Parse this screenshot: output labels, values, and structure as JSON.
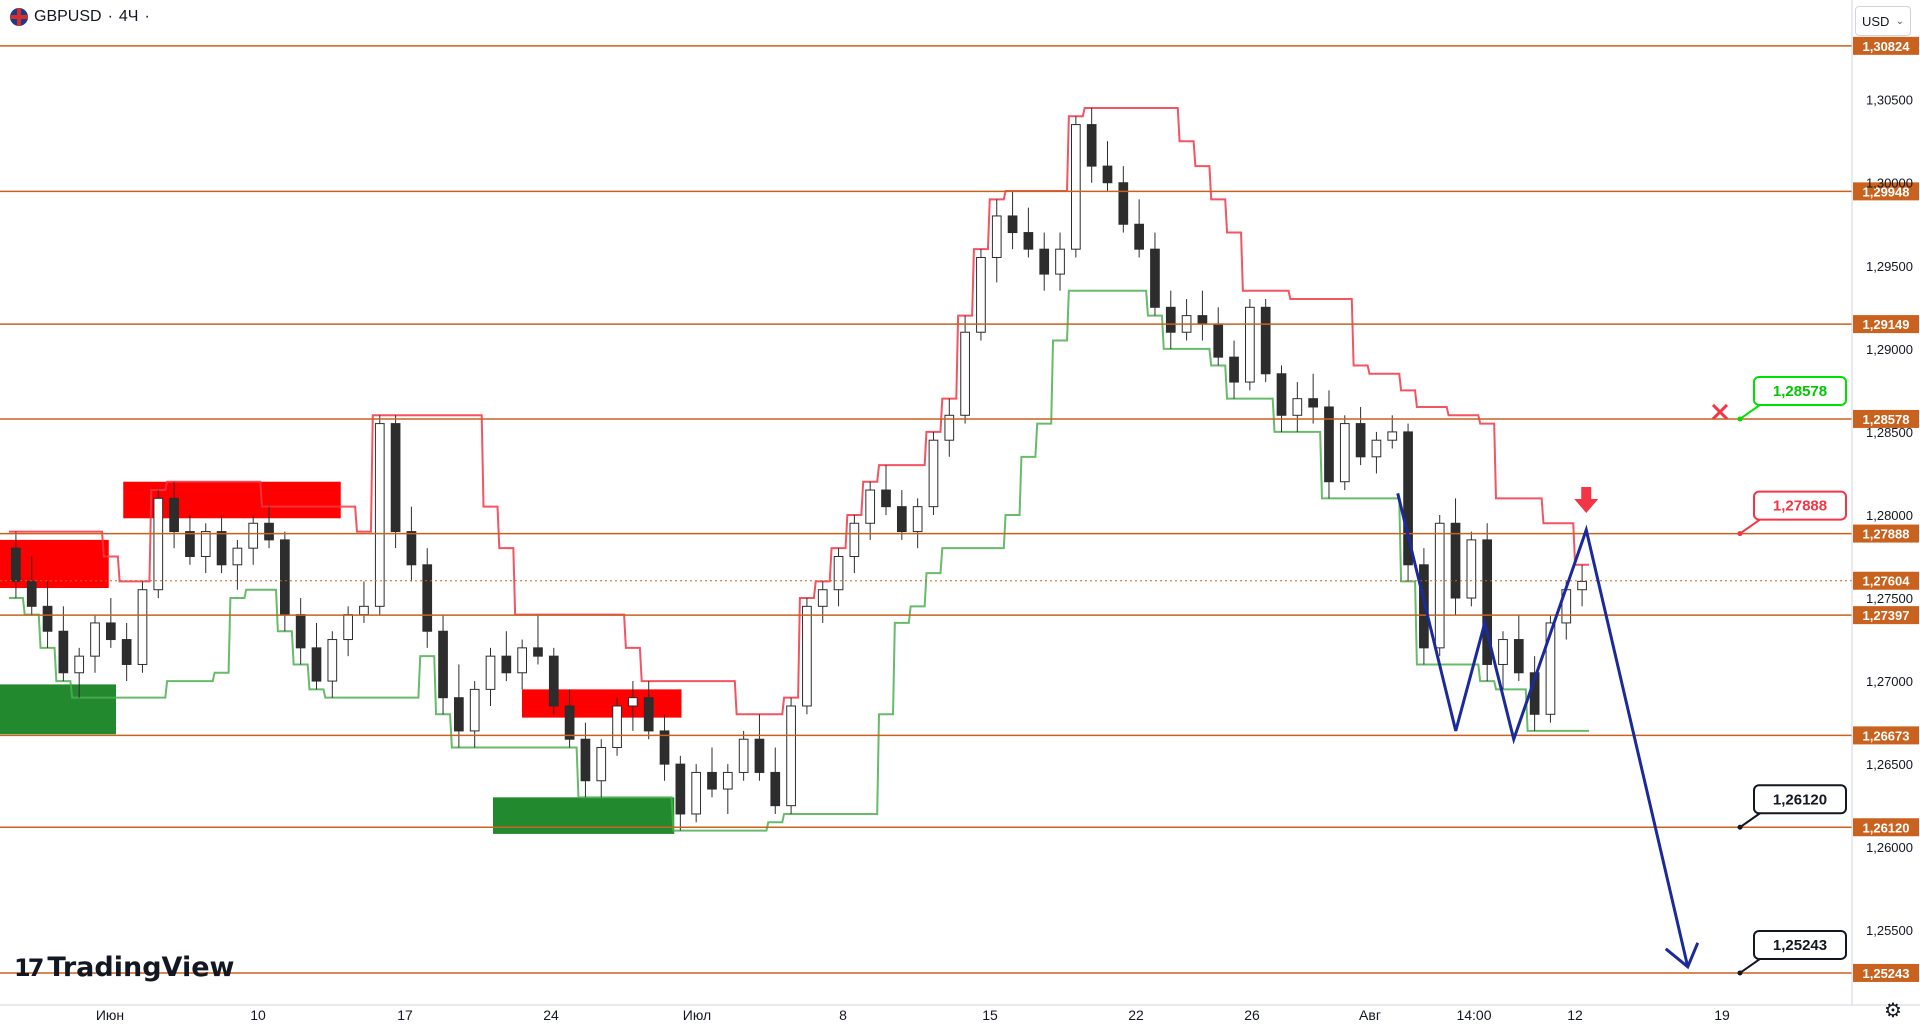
{
  "header": {
    "symbol": "GBPUSD",
    "sep": "·",
    "interval": "4Ч",
    "sep2": "·"
  },
  "currency_button": {
    "label": "USD",
    "chevron": "⌄"
  },
  "logo": {
    "text": "TradingView"
  },
  "settings_icon": "gear-icon",
  "colors": {
    "level_line": "#c8621e",
    "level_label_bg": "#c8621e",
    "bull": "#4caf50",
    "bear": "#f23645",
    "stop_up": "#4caf50",
    "stop_down": "#f23645",
    "demand_zone": "#22892e",
    "supply_zone": "#ff0000",
    "projection": "#1a2a9a",
    "last_price": "#c8621e"
  },
  "chart_data": {
    "type": "candlestick",
    "symbol": "GBPUSD",
    "interval": "4Ч",
    "ylim": [
      1.2505,
      1.311
    ],
    "y_ticks": [
      "1,30500",
      "1,30000",
      "1,29500",
      "1,29000",
      "1,28500",
      "1,28000",
      "1,27500",
      "1,27000",
      "1,26500",
      "1,26000",
      "1,25500"
    ],
    "x_ticks": [
      "Июн",
      "10",
      "17",
      "24",
      "Июл",
      "8",
      "15",
      "22",
      "26",
      "Авг",
      "14:00",
      "12",
      "19"
    ],
    "levels": [
      {
        "price": 1.30824,
        "label": "1,30824"
      },
      {
        "price": 1.29948,
        "label": "1,29948"
      },
      {
        "price": 1.29149,
        "label": "1,29149"
      },
      {
        "price": 1.28578,
        "label": "1,28578"
      },
      {
        "price": 1.27888,
        "label": "1,27888"
      },
      {
        "price": 1.27397,
        "label": "1,27397"
      },
      {
        "price": 1.26673,
        "label": "1,26673"
      },
      {
        "price": 1.2612,
        "label": "1,26120"
      },
      {
        "price": 1.25243,
        "label": "1,25243"
      }
    ],
    "last_price": {
      "price": 1.27604,
      "label": "1,27604"
    },
    "target_callouts": [
      {
        "price": 1.28578,
        "label": "1,28578",
        "style": "green",
        "marker": "x"
      },
      {
        "price": 1.27888,
        "label": "1,27888",
        "style": "red"
      },
      {
        "price": 1.2612,
        "label": "1,26120",
        "style": "black"
      },
      {
        "price": 1.25243,
        "label": "1,25243",
        "style": "black"
      }
    ],
    "zones": [
      {
        "kind": "supply",
        "x0": 0,
        "x1": 0.75,
        "y0": 1.2756,
        "y1": 1.2785
      },
      {
        "kind": "demand",
        "x0": 0,
        "x1": 0.8,
        "y0": 1.2668,
        "y1": 1.2698
      },
      {
        "kind": "supply",
        "x0": 0.85,
        "x1": 2.35,
        "y0": 1.2798,
        "y1": 1.282
      },
      {
        "kind": "demand",
        "x0": 3.4,
        "x1": 4.65,
        "y0": 1.2608,
        "y1": 1.263
      },
      {
        "kind": "supply",
        "x0": 3.6,
        "x1": 4.7,
        "y0": 1.2678,
        "y1": 1.2695
      }
    ],
    "projection_path": [
      {
        "x": 8.95,
        "y": 1.2813
      },
      {
        "x": 9.35,
        "y": 1.267
      },
      {
        "x": 9.55,
        "y": 1.2735
      },
      {
        "x": 9.75,
        "y": 1.2665
      },
      {
        "x": 10.25,
        "y": 1.2791
      },
      {
        "x": 10.95,
        "y": 1.2528
      }
    ],
    "sell_arrow": {
      "x": 10.25,
      "y": 1.28
    },
    "candles": [
      [
        1.278,
        1.279,
        1.275,
        1.276
      ],
      [
        1.276,
        1.2775,
        1.274,
        1.2745
      ],
      [
        1.2745,
        1.276,
        1.272,
        1.273
      ],
      [
        1.273,
        1.2745,
        1.27,
        1.2705
      ],
      [
        1.2705,
        1.272,
        1.269,
        1.2715
      ],
      [
        1.2715,
        1.274,
        1.2705,
        1.2735
      ],
      [
        1.2735,
        1.275,
        1.272,
        1.2725
      ],
      [
        1.2725,
        1.2735,
        1.27,
        1.271
      ],
      [
        1.271,
        1.276,
        1.2705,
        1.2755
      ],
      [
        1.2755,
        1.2815,
        1.275,
        1.281
      ],
      [
        1.281,
        1.282,
        1.278,
        1.279
      ],
      [
        1.279,
        1.28,
        1.277,
        1.2775
      ],
      [
        1.2775,
        1.2795,
        1.2765,
        1.279
      ],
      [
        1.279,
        1.28,
        1.2765,
        1.277
      ],
      [
        1.277,
        1.2785,
        1.2755,
        1.278
      ],
      [
        1.278,
        1.28,
        1.277,
        1.2795
      ],
      [
        1.2795,
        1.2805,
        1.278,
        1.2785
      ],
      [
        1.2785,
        1.279,
        1.273,
        1.274
      ],
      [
        1.274,
        1.275,
        1.271,
        1.272
      ],
      [
        1.272,
        1.2735,
        1.2695,
        1.27
      ],
      [
        1.27,
        1.273,
        1.269,
        1.2725
      ],
      [
        1.2725,
        1.2745,
        1.2715,
        1.274
      ],
      [
        1.274,
        1.276,
        1.2735,
        1.2745
      ],
      [
        1.2745,
        1.286,
        1.274,
        1.2855
      ],
      [
        1.2855,
        1.286,
        1.278,
        1.279
      ],
      [
        1.279,
        1.2805,
        1.276,
        1.277
      ],
      [
        1.277,
        1.278,
        1.272,
        1.273
      ],
      [
        1.273,
        1.274,
        1.268,
        1.269
      ],
      [
        1.269,
        1.271,
        1.266,
        1.267
      ],
      [
        1.267,
        1.27,
        1.266,
        1.2695
      ],
      [
        1.2695,
        1.272,
        1.2685,
        1.2715
      ],
      [
        1.2715,
        1.273,
        1.27,
        1.2705
      ],
      [
        1.2705,
        1.2725,
        1.2695,
        1.272
      ],
      [
        1.272,
        1.274,
        1.271,
        1.2715
      ],
      [
        1.2715,
        1.272,
        1.268,
        1.2685
      ],
      [
        1.2685,
        1.2695,
        1.266,
        1.2665
      ],
      [
        1.2665,
        1.2675,
        1.263,
        1.264
      ],
      [
        1.264,
        1.2665,
        1.263,
        1.266
      ],
      [
        1.266,
        1.269,
        1.2655,
        1.2685
      ],
      [
        1.2685,
        1.27,
        1.267,
        1.269
      ],
      [
        1.269,
        1.27,
        1.2665,
        1.267
      ],
      [
        1.267,
        1.268,
        1.264,
        1.265
      ],
      [
        1.265,
        1.2655,
        1.261,
        1.262
      ],
      [
        1.262,
        1.265,
        1.2615,
        1.2645
      ],
      [
        1.2645,
        1.266,
        1.263,
        1.2635
      ],
      [
        1.2635,
        1.265,
        1.262,
        1.2645
      ],
      [
        1.2645,
        1.267,
        1.264,
        1.2665
      ],
      [
        1.2665,
        1.268,
        1.264,
        1.2645
      ],
      [
        1.2645,
        1.266,
        1.262,
        1.2625
      ],
      [
        1.2625,
        1.269,
        1.262,
        1.2685
      ],
      [
        1.2685,
        1.275,
        1.268,
        1.2745
      ],
      [
        1.2745,
        1.276,
        1.2735,
        1.2755
      ],
      [
        1.2755,
        1.278,
        1.2745,
        1.2775
      ],
      [
        1.2775,
        1.28,
        1.2765,
        1.2795
      ],
      [
        1.2795,
        1.282,
        1.2785,
        1.2815
      ],
      [
        1.2815,
        1.283,
        1.28,
        1.2805
      ],
      [
        1.2805,
        1.2815,
        1.2785,
        1.279
      ],
      [
        1.279,
        1.281,
        1.278,
        1.2805
      ],
      [
        1.2805,
        1.285,
        1.28,
        1.2845
      ],
      [
        1.2845,
        1.287,
        1.2835,
        1.286
      ],
      [
        1.286,
        1.292,
        1.2855,
        1.291
      ],
      [
        1.291,
        1.296,
        1.2905,
        1.2955
      ],
      [
        1.2955,
        1.299,
        1.294,
        1.298
      ],
      [
        1.298,
        1.2995,
        1.296,
        1.297
      ],
      [
        1.297,
        1.2985,
        1.2955,
        1.296
      ],
      [
        1.296,
        1.297,
        1.2935,
        1.2945
      ],
      [
        1.2945,
        1.297,
        1.2935,
        1.296
      ],
      [
        1.296,
        1.304,
        1.2955,
        1.3035
      ],
      [
        1.3035,
        1.3045,
        1.3,
        1.301
      ],
      [
        1.301,
        1.3025,
        1.2995,
        1.3
      ],
      [
        1.3,
        1.301,
        1.297,
        1.2975
      ],
      [
        1.2975,
        1.299,
        1.2955,
        1.296
      ],
      [
        1.296,
        1.297,
        1.292,
        1.2925
      ],
      [
        1.2925,
        1.2935,
        1.29,
        1.291
      ],
      [
        1.291,
        1.293,
        1.2905,
        1.292
      ],
      [
        1.292,
        1.2935,
        1.2905,
        1.2915
      ],
      [
        1.2915,
        1.2925,
        1.289,
        1.2895
      ],
      [
        1.2895,
        1.2905,
        1.287,
        1.288
      ],
      [
        1.288,
        1.293,
        1.2875,
        1.2925
      ],
      [
        1.2925,
        1.293,
        1.288,
        1.2885
      ],
      [
        1.2885,
        1.289,
        1.285,
        1.286
      ],
      [
        1.286,
        1.288,
        1.285,
        1.287
      ],
      [
        1.287,
        1.2885,
        1.2855,
        1.2865
      ],
      [
        1.2865,
        1.2875,
        1.281,
        1.282
      ],
      [
        1.282,
        1.286,
        1.2815,
        1.2855
      ],
      [
        1.2855,
        1.2865,
        1.283,
        1.2835
      ],
      [
        1.2835,
        1.285,
        1.2825,
        1.2845
      ],
      [
        1.2845,
        1.286,
        1.284,
        1.285
      ],
      [
        1.285,
        1.2855,
        1.276,
        1.277
      ],
      [
        1.277,
        1.278,
        1.271,
        1.272
      ],
      [
        1.272,
        1.28,
        1.2715,
        1.2795
      ],
      [
        1.2795,
        1.281,
        1.274,
        1.275
      ],
      [
        1.275,
        1.279,
        1.2745,
        1.2785
      ],
      [
        1.2785,
        1.2795,
        1.27,
        1.271
      ],
      [
        1.271,
        1.273,
        1.2695,
        1.2725
      ],
      [
        1.2725,
        1.274,
        1.27,
        1.2705
      ],
      [
        1.2705,
        1.2715,
        1.267,
        1.268
      ],
      [
        1.268,
        1.274,
        1.2675,
        1.2735
      ],
      [
        1.2735,
        1.276,
        1.2725,
        1.2755
      ],
      [
        1.2755,
        1.277,
        1.2745,
        1.276
      ]
    ]
  }
}
